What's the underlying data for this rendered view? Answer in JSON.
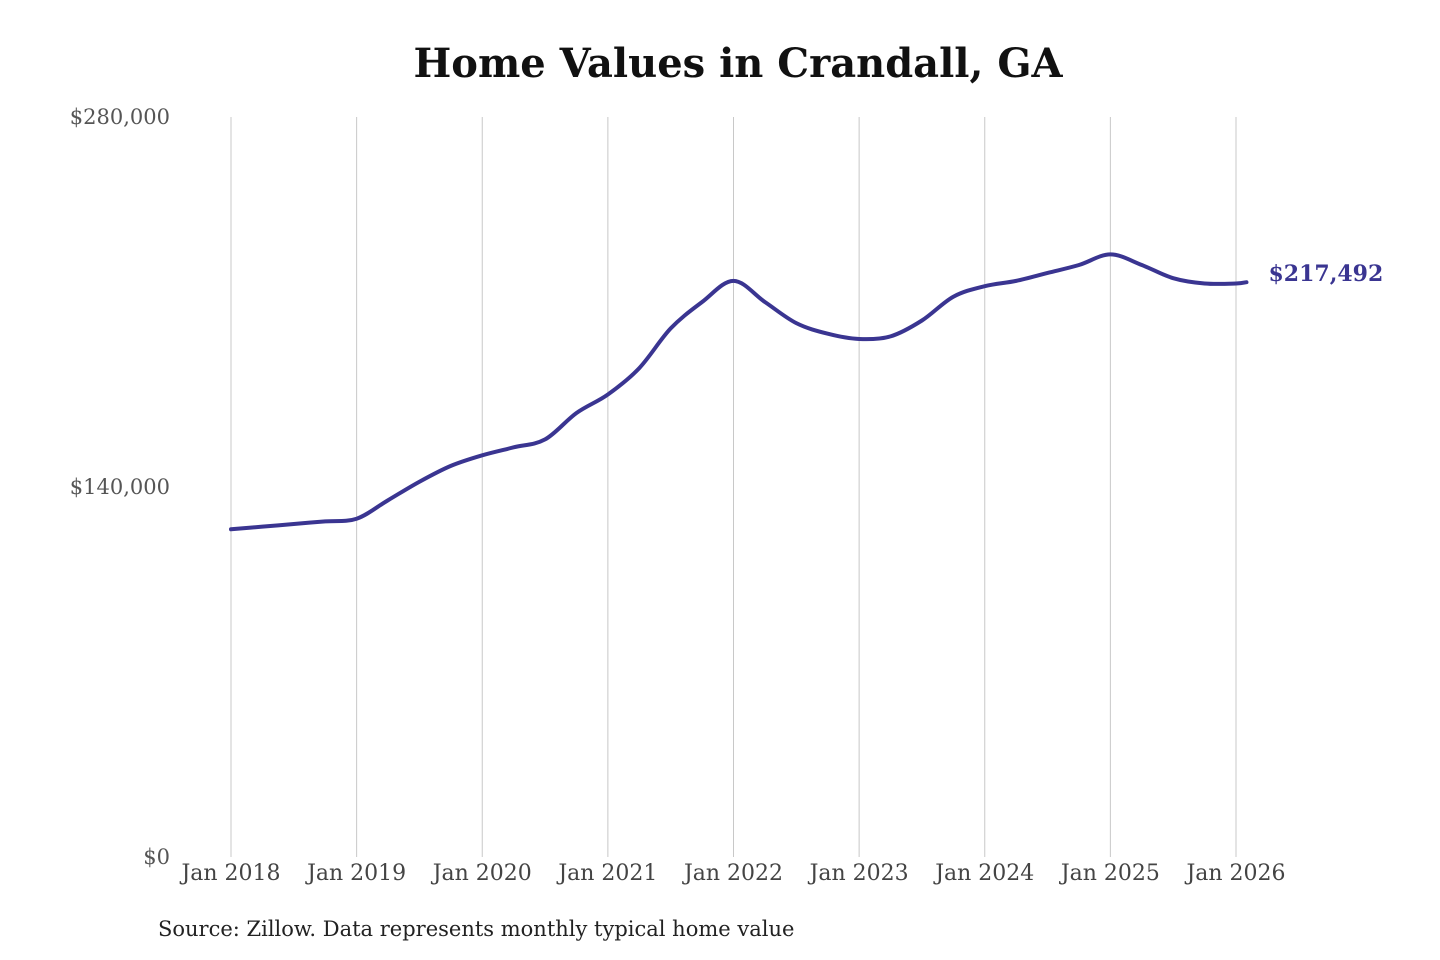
{
  "chart_data": {
    "type": "line",
    "title": "Home Values in Crandall, GA",
    "source": "Source: Zillow. Data represents monthly typical home value",
    "ylim": [
      0,
      280000
    ],
    "y_ticks": [
      {
        "value": 0,
        "label": "$0"
      },
      {
        "value": 140000,
        "label": "$140,000"
      },
      {
        "value": 280000,
        "label": "$280,000"
      }
    ],
    "x_ticks": [
      {
        "date": "2018-01",
        "label": "Jan 2018"
      },
      {
        "date": "2019-01",
        "label": "Jan 2019"
      },
      {
        "date": "2020-01",
        "label": "Jan 2020"
      },
      {
        "date": "2021-01",
        "label": "Jan 2021"
      },
      {
        "date": "2022-01",
        "label": "Jan 2022"
      },
      {
        "date": "2023-01",
        "label": "Jan 2023"
      },
      {
        "date": "2024-01",
        "label": "Jan 2024"
      },
      {
        "date": "2025-01",
        "label": "Jan 2025"
      },
      {
        "date": "2026-01",
        "label": "Jan 2026"
      }
    ],
    "grid": "vertical",
    "line_color": "#3a3591",
    "end_label": "$217,492",
    "series": [
      {
        "x": [
          "2018-01",
          "2018-04",
          "2018-07",
          "2018-10",
          "2019-01",
          "2019-04",
          "2019-07",
          "2019-10",
          "2020-01",
          "2020-04",
          "2020-07",
          "2020-10",
          "2021-01",
          "2021-04",
          "2021-07",
          "2021-10",
          "2022-01",
          "2022-04",
          "2022-07",
          "2022-10",
          "2023-01",
          "2023-04",
          "2023-07",
          "2023-10",
          "2024-01",
          "2024-04",
          "2024-07",
          "2024-10",
          "2025-01",
          "2025-04",
          "2025-07",
          "2025-10",
          "2026-01",
          "2026-02"
        ],
        "values": [
          124000,
          125000,
          126000,
          127000,
          128000,
          135000,
          142000,
          148000,
          152000,
          155000,
          158000,
          168000,
          175000,
          185000,
          200000,
          210000,
          218000,
          210000,
          202000,
          198000,
          196000,
          197000,
          203000,
          212000,
          216000,
          218000,
          221000,
          224000,
          228000,
          224000,
          219000,
          217000,
          217000,
          217492
        ]
      }
    ]
  }
}
